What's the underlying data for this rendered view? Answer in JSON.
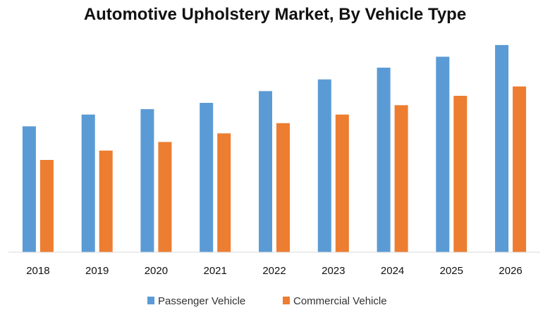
{
  "chart_data": {
    "type": "bar",
    "title": "Automotive Upholstery Market, By Vehicle Type",
    "xlabel": "",
    "ylabel": "",
    "categories": [
      "2018",
      "2019",
      "2020",
      "2021",
      "2022",
      "2023",
      "2024",
      "2025",
      "2026"
    ],
    "series": [
      {
        "name": "Passenger Vehicle",
        "color": "#5B9BD5",
        "values": [
          161,
          176,
          183,
          191,
          206,
          221,
          236,
          250,
          265
        ]
      },
      {
        "name": "Commercial Vehicle",
        "color": "#ED7D31",
        "values": [
          118,
          130,
          141,
          152,
          165,
          176,
          188,
          200,
          212
        ]
      }
    ],
    "ylim": [
      0,
      300
    ],
    "grid": false,
    "y_axis_visible": false,
    "legend_position": "bottom-center"
  }
}
